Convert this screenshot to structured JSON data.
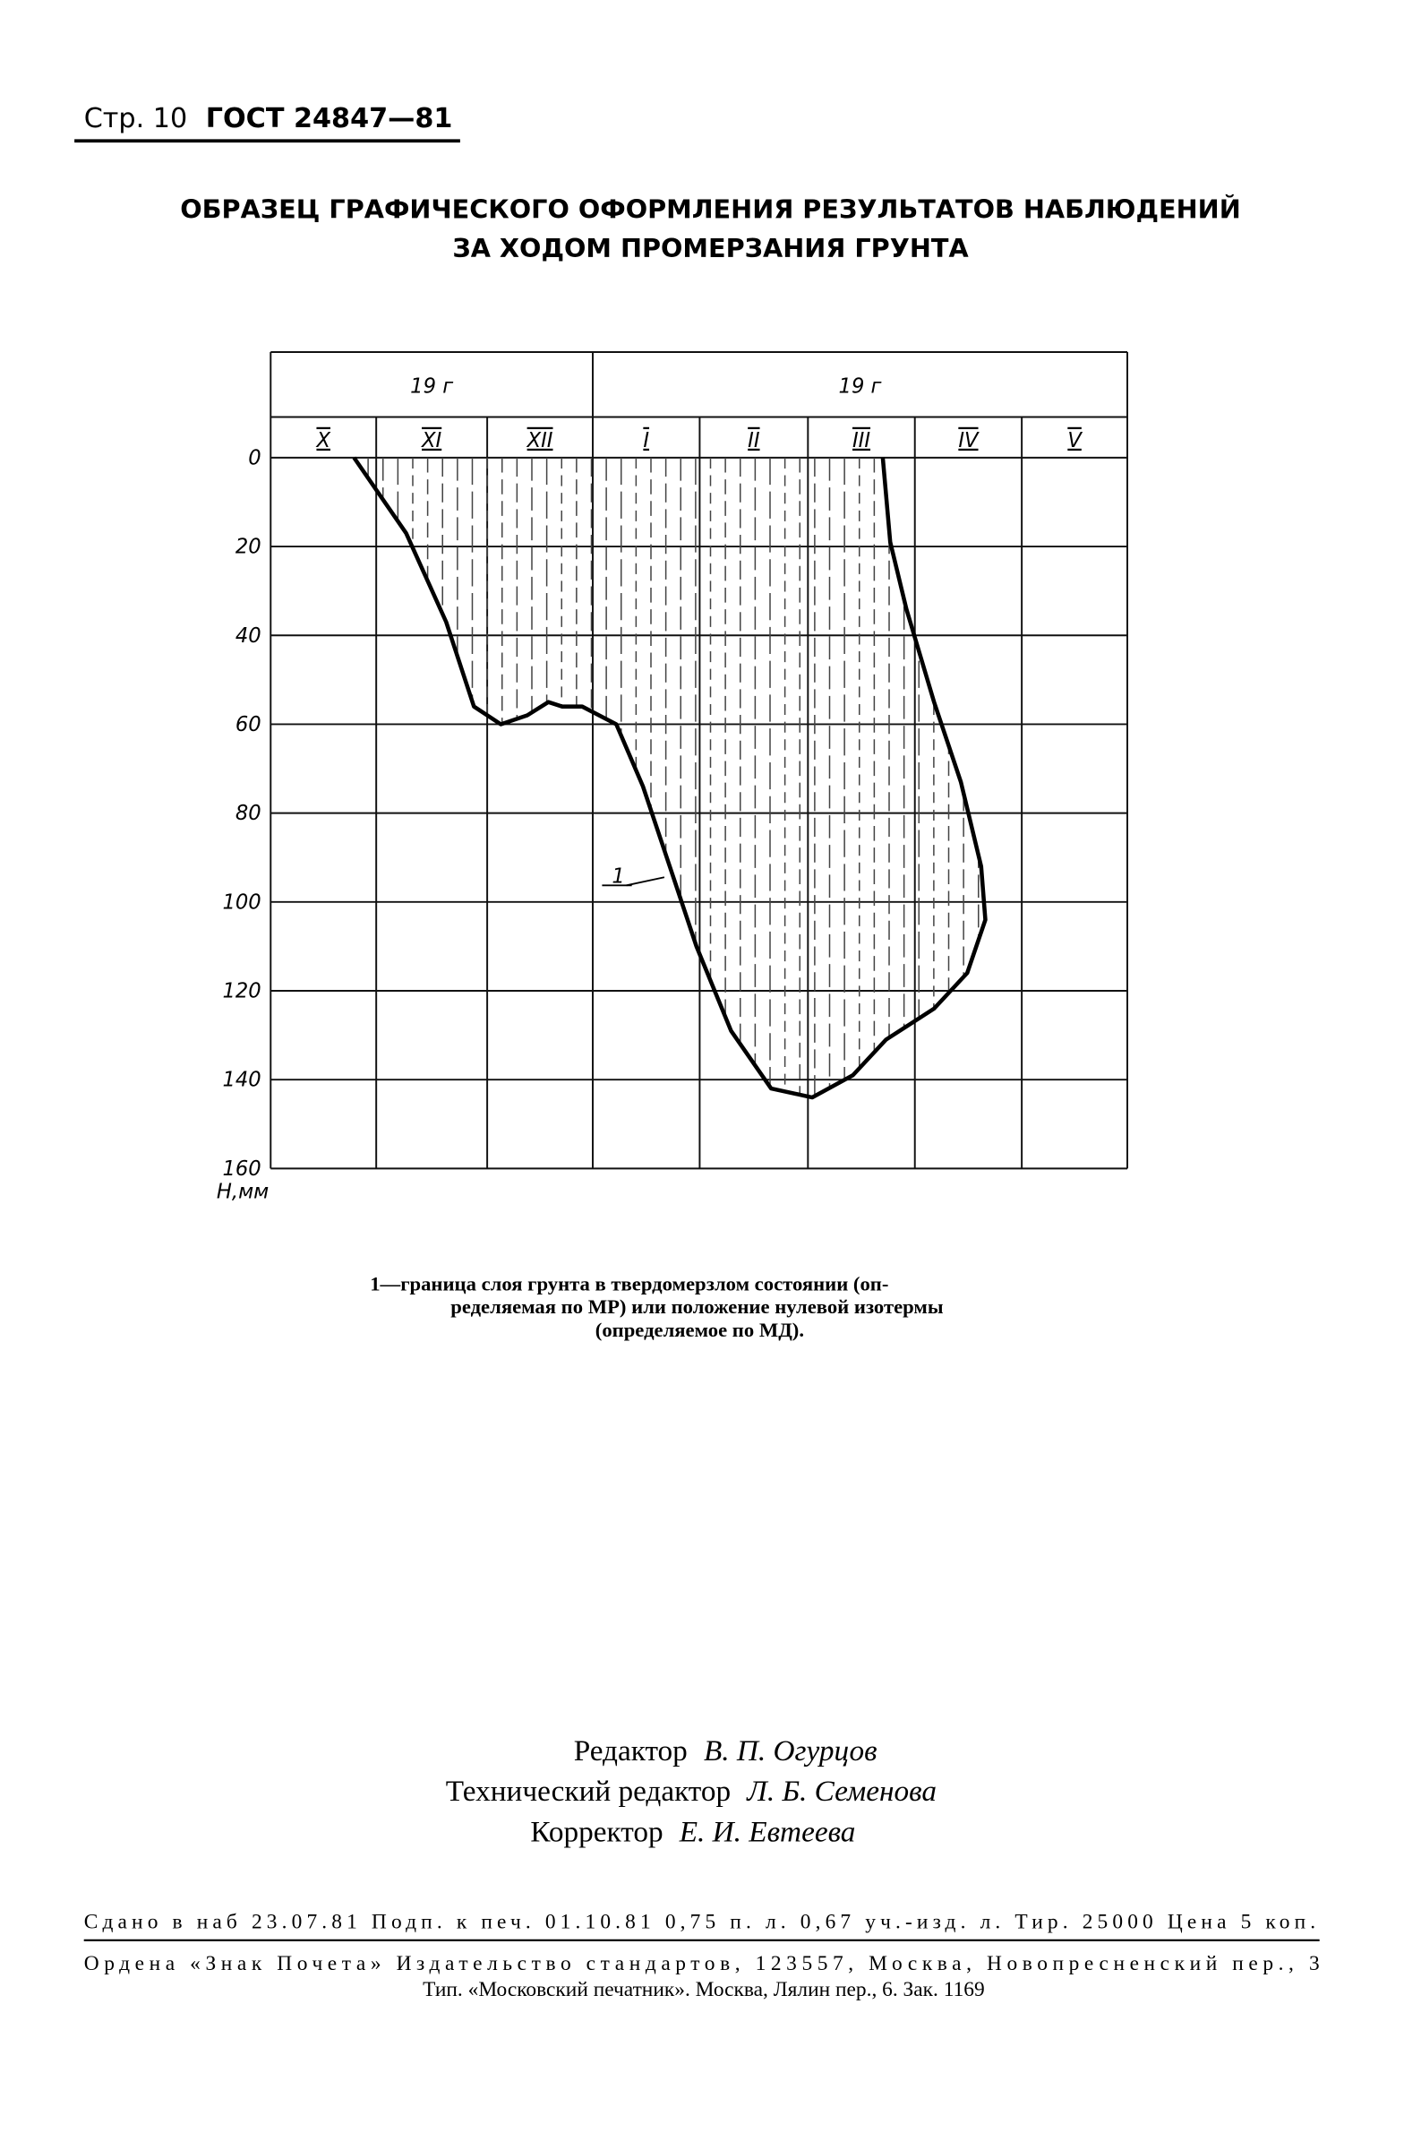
{
  "header": {
    "page": "Стр. 10",
    "standard": "ГОСТ 24847—81"
  },
  "title": [
    "ОБРАЗЕЦ ГРАФИЧЕСКОГО ОФОРМЛЕНИЯ РЕЗУЛЬТАТОВ НАБЛЮДЕНИЙ",
    "ЗА ХОДОМ ПРОМЕРЗАНИЯ ГРУНТА"
  ],
  "chart_data": {
    "type": "line",
    "years": [
      "19 г",
      "19 г"
    ],
    "categories": [
      "X",
      "XI",
      "XII",
      "I",
      "II",
      "III",
      "IV",
      "V"
    ],
    "y_label": "Н,мм",
    "ylim": [
      0,
      160
    ],
    "yticks": [
      0,
      20,
      40,
      60,
      80,
      100,
      120,
      140,
      160
    ],
    "xlim": [
      0,
      8
    ],
    "series": [
      {
        "name": "1",
        "color": "#000000",
        "x": [
          0.79,
          1.27,
          1.63,
          1.88,
          2.13,
          2.38,
          2.58,
          2.71,
          2.9,
          3.22,
          3.47,
          3.72,
          3.97,
          4.29,
          4.66,
          5.04,
          5.42,
          5.73,
          6.18,
          6.49,
          6.66,
          6.62,
          6.43,
          6.18,
          5.92,
          5.77,
          5.7
        ],
        "values": [
          0,
          17,
          37,
          56,
          60,
          58,
          55,
          56,
          56,
          60,
          74,
          92,
          110,
          129,
          142,
          144,
          139,
          131,
          124,
          116,
          104,
          92,
          73,
          55,
          34,
          19,
          0
        ]
      }
    ]
  },
  "caption": [
    "1—граница слоя грунта в твердомерзлом состоянии (оп-",
    "ределяемая по МР) или положение нулевой изотермы",
    "(определяемое по МД)."
  ],
  "credits": [
    {
      "role": "Редактор",
      "name": "В. П. Огурцов"
    },
    {
      "role": "Технический редактор",
      "name": "Л. Б. Семенова"
    },
    {
      "role": "Корректор",
      "name": "Е. И. Евтеева"
    }
  ],
  "imprint": [
    "Сдано в наб 23.07.81 Подп. к печ. 01.10.81 0,75 п. л. 0,67 уч.-изд. л. Тир. 25000 Цена 5 коп.",
    "Ордена «Знак Почета» Издательство стандартов, 123557, Москва, Новопресненский пер., 3",
    "Тип. «Московский печатник». Москва, Лялин пер., 6. Зак. 1169"
  ]
}
